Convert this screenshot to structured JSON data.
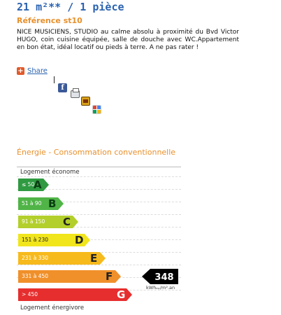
{
  "listing": {
    "title": "21 m²** / 1 pièce",
    "reference": "Référence st10",
    "description": "NICE MUSICIENS, STUDIO au calme absolu à proximité du Bvd Victor HUGO, coin cuisine équipée, salle de douche avec WC.Appartement en bon état, idéal locatif ou pieds à terre. A ne pas rater !"
  },
  "share": {
    "label": "Share",
    "icons": [
      "share-plus-icon",
      "facebook-icon",
      "printer-icon",
      "photo-icon",
      "google-icon"
    ]
  },
  "energy": {
    "title": "Énergie - Consommation conventionnelle",
    "top_label": "Logement économe",
    "bottom_label": "Logement énergivore",
    "rating": "F",
    "value": "348",
    "unit": "kWhₑₚ/m².an",
    "classes": [
      {
        "letter": "A",
        "range": "≤ 50",
        "color": "#2f9a41"
      },
      {
        "letter": "B",
        "range": "51 à 90",
        "color": "#50b447"
      },
      {
        "letter": "C",
        "range": "91 à 150",
        "color": "#b3cf2b"
      },
      {
        "letter": "D",
        "range": "151 à 230",
        "color": "#f1e51c"
      },
      {
        "letter": "E",
        "range": "231 à 330",
        "color": "#f7ba1c"
      },
      {
        "letter": "F",
        "range": "331 à 450",
        "color": "#f0902a"
      },
      {
        "letter": "G",
        "range": "> 450",
        "color": "#e62e2e"
      }
    ]
  }
}
